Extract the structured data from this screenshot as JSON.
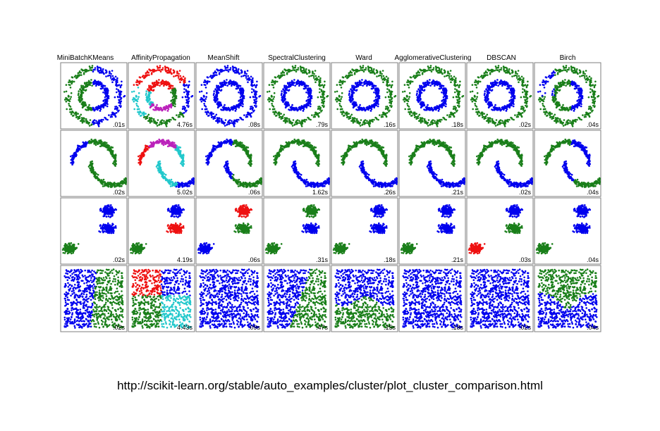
{
  "caption": "http://scikit-learn.org/stable/auto_examples/cluster/plot_cluster_comparison.html",
  "colors": {
    "blue": "#0000ee",
    "green": "#1a7f1a",
    "red": "#ee1111",
    "cyan": "#22c8cc",
    "magenta": "#bb22bb"
  },
  "chart_data": {
    "type": "scatter",
    "columns": [
      "MiniBatchKMeans",
      "AffinityPropagation",
      "MeanShift",
      "SpectralClustering",
      "Ward",
      "AgglomerativeClustering",
      "DBSCAN",
      "Birch"
    ],
    "rows": [
      "circles",
      "moons",
      "blobs",
      "uniform"
    ],
    "times": [
      [
        ".01s",
        "4.76s",
        ".08s",
        ".79s",
        ".16s",
        ".18s",
        ".02s",
        ".04s"
      ],
      [
        ".02s",
        "5.02s",
        ".06s",
        "1.62s",
        ".26s",
        ".21s",
        ".02s",
        ".04s"
      ],
      [
        ".02s",
        "4.19s",
        ".06s",
        ".31s",
        ".18s",
        ".21s",
        ".03s",
        ".04s"
      ],
      [
        ".02s",
        "4.43s",
        ".09s",
        ".47s",
        ".15s",
        ".18s",
        ".02s",
        ".04s"
      ]
    ],
    "grid": false,
    "legend": "none"
  }
}
